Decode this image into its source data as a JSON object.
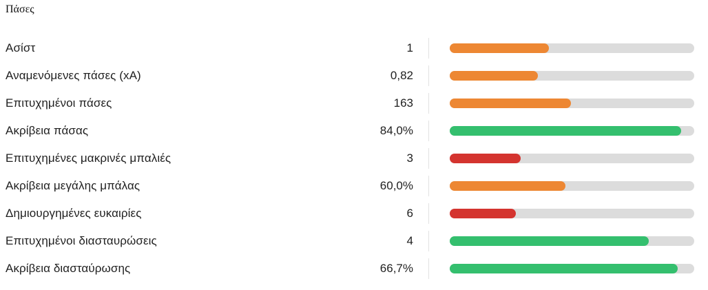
{
  "title": "Πάσες",
  "colors": {
    "orange": "#ED8733",
    "green": "#34BF6E",
    "red": "#D4342F",
    "track": "#DCDCDC",
    "divider": "#E2E2E2",
    "text": "#1F1F1F"
  },
  "chart_data": {
    "type": "bar",
    "orientation": "horizontal",
    "title": "Πάσες",
    "value_range_pct": [
      0,
      100
    ],
    "legend": "none",
    "rows": [
      {
        "label": "Ασίστ",
        "value": "1",
        "fill_pct": 40.5,
        "color": "orange"
      },
      {
        "label": "Αναμενόμενες πάσες (xA)",
        "value": "0,82",
        "fill_pct": 36.0,
        "color": "orange"
      },
      {
        "label": "Επιτυχημένοι πάσες",
        "value": "163",
        "fill_pct": 49.5,
        "color": "orange"
      },
      {
        "label": "Ακρίβεια πάσας",
        "value": "84,0%",
        "fill_pct": 94.7,
        "color": "green"
      },
      {
        "label": "Επιτυχημένες μακρινές μπαλιές",
        "value": "3",
        "fill_pct": 29.0,
        "color": "red"
      },
      {
        "label": "Ακρίβεια μεγάλης μπάλας",
        "value": "60,0%",
        "fill_pct": 47.2,
        "color": "orange"
      },
      {
        "label": "Δημιουργημένες ευκαιρίες",
        "value": "6",
        "fill_pct": 27.1,
        "color": "red"
      },
      {
        "label": "Επιτυχημένοι διασταυρώσεις",
        "value": "4",
        "fill_pct": 81.4,
        "color": "green"
      },
      {
        "label": "Ακρίβεια διασταύρωσης",
        "value": "66,7%",
        "fill_pct": 93.1,
        "color": "green"
      }
    ]
  }
}
